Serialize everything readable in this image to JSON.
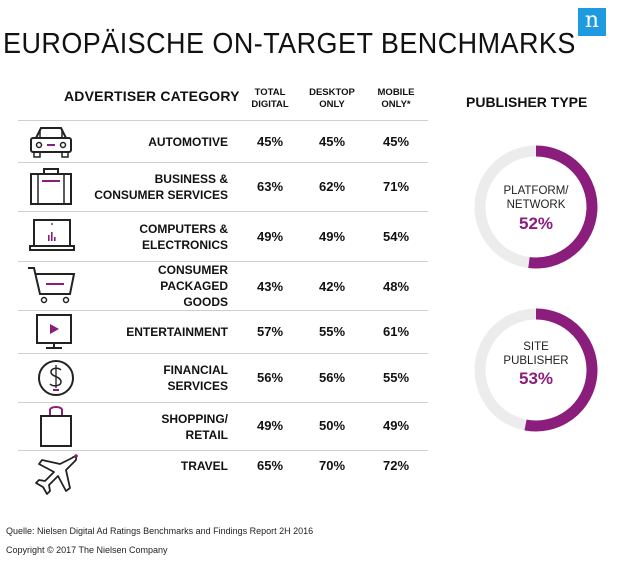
{
  "logo": "n",
  "title": "EUROPÄISCHE ON-TARGET BENCHMARKS",
  "headers": {
    "category": "ADVERTISER CATEGORY",
    "total": [
      "TOTAL",
      "DIGITAL"
    ],
    "desktop": [
      "DESKTOP",
      "ONLY"
    ],
    "mobile": [
      "MOBILE",
      "ONLY*"
    ],
    "publisher": "PUBLISHER TYPE"
  },
  "rows": [
    {
      "label": [
        "AUTOMOTIVE"
      ],
      "icon": "car-icon",
      "total": "45%",
      "desktop": "45%",
      "mobile": "45%"
    },
    {
      "label": [
        "BUSINESS &",
        "CONSUMER SERVICES"
      ],
      "icon": "briefcase-icon",
      "total": "63%",
      "desktop": "62%",
      "mobile": "71%"
    },
    {
      "label": [
        "COMPUTERS &",
        "ELECTRONICS"
      ],
      "icon": "laptop-icon",
      "total": "49%",
      "desktop": "49%",
      "mobile": "54%"
    },
    {
      "label": [
        "CONSUMER PACKAGED",
        "GOODS"
      ],
      "icon": "cart-icon",
      "total": "43%",
      "desktop": "42%",
      "mobile": "48%"
    },
    {
      "label": [
        "ENTERTAINMENT"
      ],
      "icon": "tv-play-icon",
      "total": "57%",
      "desktop": "55%",
      "mobile": "61%"
    },
    {
      "label": [
        "FINANCIAL",
        "SERVICES"
      ],
      "icon": "dollar-icon",
      "total": "56%",
      "desktop": "56%",
      "mobile": "55%"
    },
    {
      "label": [
        "SHOPPING/",
        "RETAIL"
      ],
      "icon": "shopping-bag-icon",
      "total": "49%",
      "desktop": "50%",
      "mobile": "49%"
    },
    {
      "label": [
        "TRAVEL"
      ],
      "icon": "airplane-icon",
      "total": "65%",
      "desktop": "70%",
      "mobile": "72%"
    }
  ],
  "publishers": [
    {
      "label": [
        "PLATFORM/",
        "NETWORK"
      ],
      "value": "52%",
      "fraction": 0.52
    },
    {
      "label": [
        "SITE",
        "PUBLISHER"
      ],
      "value": "53%",
      "fraction": 0.53
    }
  ],
  "colors": {
    "accent": "#8b1d7d",
    "track": "#ececec",
    "logo_bg": "#1e9be0"
  },
  "footer": {
    "source": "Quelle: Nielsen Digital Ad Ratings Benchmarks and Findings Report 2H 2016",
    "copyright": "Copyright © 2017 The Nielsen Company"
  }
}
